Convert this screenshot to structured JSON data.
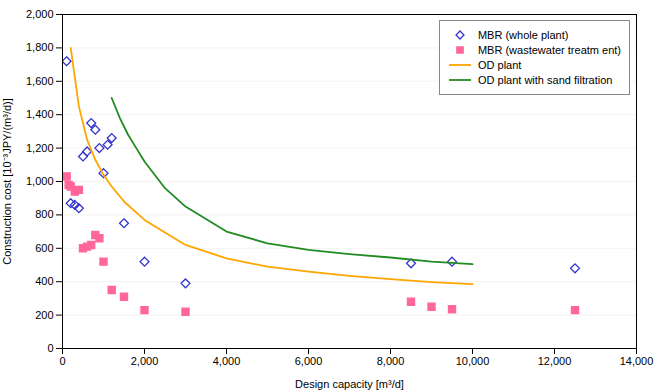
{
  "chart_data": {
    "type": "scatter",
    "x_label": "Design capacity [m³/d]",
    "y_label": "Construction cost [10⁻³JPY/(m³/d)]",
    "series": [
      {
        "name": "MBR (whole plant)",
        "type": "scatter",
        "marker": "open_diamond",
        "color": "#3333CC",
        "x": [
          100,
          200,
          300,
          400,
          500,
          600,
          700,
          800,
          900,
          1000,
          1100,
          1200,
          1500,
          2000,
          3000,
          8500,
          9500,
          12500
        ],
        "values": [
          1720,
          870,
          860,
          840,
          1150,
          1180,
          1350,
          1310,
          1200,
          1050,
          1220,
          1260,
          750,
          520,
          390,
          510,
          520,
          480
        ]
      },
      {
        "name": "MBR (wastewater treatm ent)",
        "type": "scatter",
        "marker": "square",
        "color": "#FF6699",
        "x": [
          100,
          150,
          200,
          300,
          400,
          500,
          600,
          700,
          800,
          900,
          1000,
          1200,
          1500,
          2000,
          3000,
          8500,
          9000,
          9500,
          12500
        ],
        "values": [
          1030,
          980,
          970,
          940,
          950,
          600,
          610,
          620,
          680,
          660,
          520,
          350,
          310,
          230,
          220,
          280,
          250,
          235,
          230
        ]
      },
      {
        "name": "OD plant",
        "type": "line",
        "color": "#FFA500",
        "x": [
          200,
          400,
          600,
          800,
          1000,
          1200,
          1500,
          2000,
          3000,
          4000,
          5000,
          6000,
          7000,
          8000,
          9000,
          10000
        ],
        "values": [
          1800,
          1450,
          1250,
          1130,
          1040,
          970,
          880,
          770,
          620,
          540,
          490,
          460,
          435,
          415,
          398,
          385
        ]
      },
      {
        "name": "OD plant with sand filtration",
        "type": "line",
        "color": "#228B22",
        "x": [
          1200,
          1400,
          1600,
          1800,
          2000,
          2500,
          3000,
          4000,
          5000,
          6000,
          7000,
          8000,
          9000,
          10000
        ],
        "values": [
          1500,
          1380,
          1280,
          1200,
          1120,
          960,
          850,
          700,
          630,
          590,
          565,
          545,
          520,
          505
        ]
      }
    ],
    "xlim": [
      0,
      14000
    ],
    "ylim": [
      0,
      2000
    ],
    "xticks": [
      0,
      {
        "value": 2000,
        "label": "2,000"
      },
      {
        "value": 4000,
        "label": "4,000"
      },
      {
        "value": 6000,
        "label": "6,000"
      },
      {
        "value": 8000,
        "label": "8,000"
      },
      {
        "value": 10000,
        "label": "10,000"
      },
      {
        "value": 12000,
        "label": "12,000"
      },
      {
        "value": 14000,
        "label": "14,000"
      }
    ],
    "yticks": [
      0,
      200,
      400,
      600,
      800,
      {
        "value": 1000,
        "label": "1,000"
      },
      {
        "value": 1200,
        "label": "1,200"
      },
      {
        "value": 1400,
        "label": "1,400"
      },
      {
        "value": 1600,
        "label": "1,600"
      },
      {
        "value": 1800,
        "label": "1,800"
      },
      {
        "value": 2000,
        "label": "2,000"
      }
    ],
    "grid": true,
    "legend": "upper right"
  }
}
